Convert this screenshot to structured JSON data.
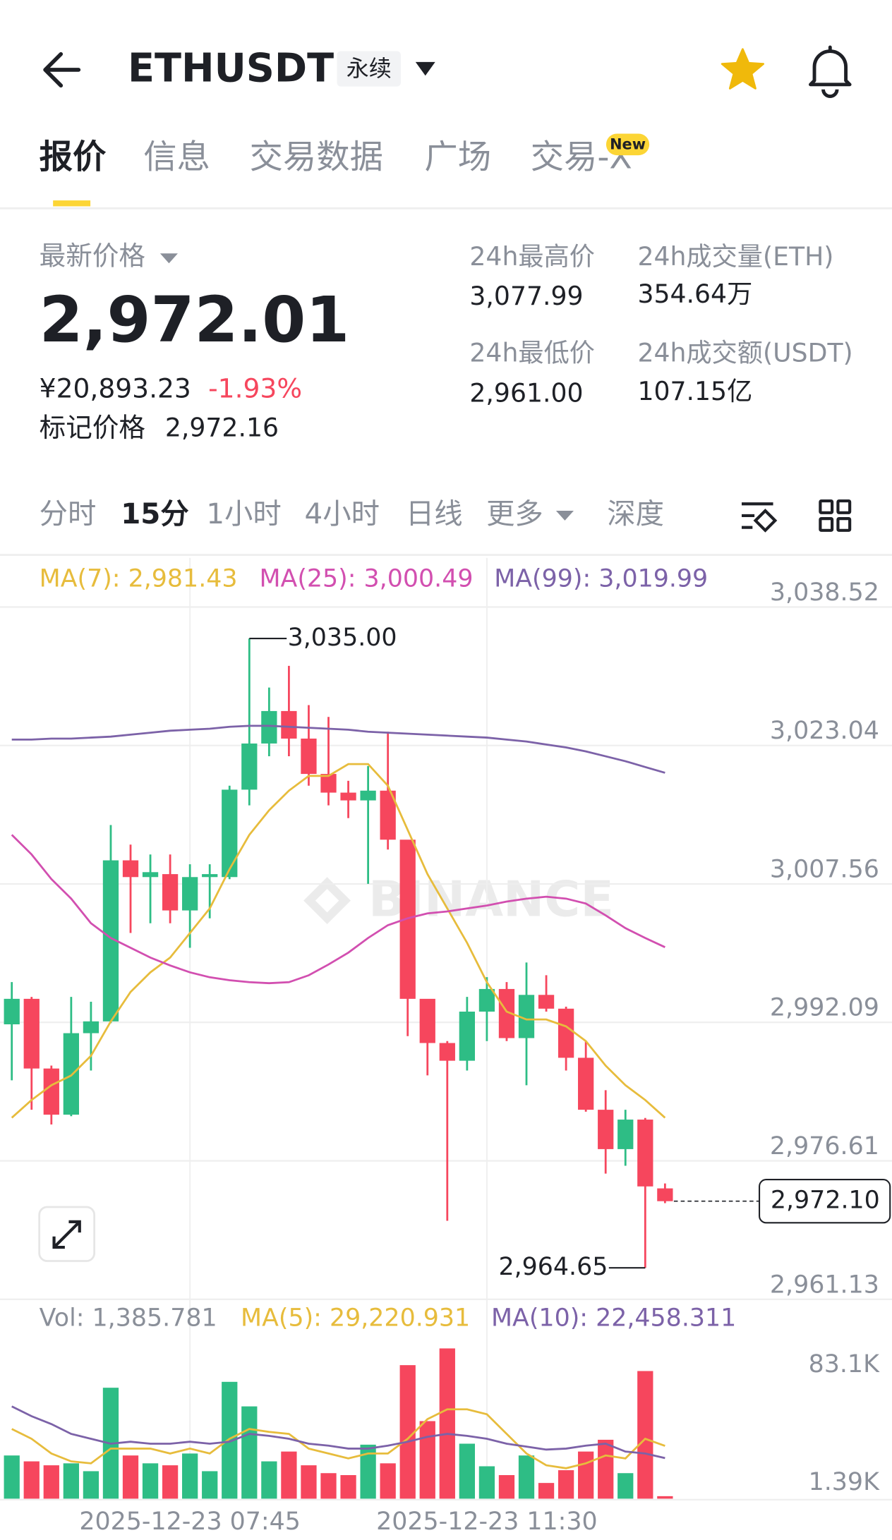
{
  "header": {
    "symbol": "ETHUSDT",
    "contract": "永续"
  },
  "tabs": [
    "报价",
    "信息",
    "交易数据",
    "广场",
    "交易-X"
  ],
  "tab_badge": "New",
  "stats": {
    "last_price_label": "最新价格",
    "last_price": "2,972.01",
    "cny": "¥20,893.23",
    "change": "-1.93%",
    "mark_label": "标记价格",
    "mark_price": "2,972.16",
    "high_label": "24h最高价",
    "high": "3,077.99",
    "low_label": "24h最低价",
    "low": "2,961.00",
    "vol_label": "24h成交量(ETH)",
    "vol": "354.64万",
    "turnover_label": "24h成交额(USDT)",
    "turnover": "107.15亿"
  },
  "intervals": [
    "分时",
    "15分",
    "1小时",
    "4小时",
    "日线",
    "更多",
    "深度"
  ],
  "watermark": "BINANCE",
  "chart_data": [
    {
      "type": "candlestick",
      "categories": [
        null,
        null,
        null,
        null,
        null,
        null,
        null,
        null,
        null,
        "2025-12-23 07:45",
        null,
        null,
        null,
        null,
        null,
        null,
        null,
        null,
        null,
        null,
        null,
        null,
        null,
        null,
        "2025-12-23 11:30",
        null,
        null,
        null,
        null,
        null,
        null,
        null,
        null,
        null
      ],
      "open": [
        2991.87,
        2994.72,
        2986.93,
        2981.77,
        2990.88,
        2992.2,
        3010.2,
        3008.33,
        3008.66,
        3004.6,
        3008.33,
        3008.33,
        3018.1,
        3023.26,
        3026.89,
        3023.81,
        3019.86,
        3017.77,
        3016.9,
        3017.99,
        3012.51,
        2994.72,
        2989.78,
        2987.8,
        2993.29,
        2995.82,
        2990.33,
        2995.16,
        2993.62,
        2988.13,
        2982.32,
        2977.92,
        2981.22,
        2973.53
      ],
      "high": [
        2996.59,
        2994.94,
        2987.26,
        2994.94,
        2994.39,
        3014.15,
        3011.96,
        3010.86,
        3010.86,
        3009.76,
        3009.76,
        3018.54,
        3035.0,
        3029.52,
        3031.94,
        3027.55,
        3026.23,
        3019.09,
        3020.74,
        3024.58,
        3012.3,
        2994.5,
        2990.0,
        2994.94,
        2997.14,
        2996.59,
        2998.78,
        2997.36,
        2993.84,
        2990.0,
        2984.51,
        2982.32,
        2981.4,
        2974.08
      ],
      "low": [
        2985.61,
        2982.32,
        2980.67,
        2981.6,
        2986.71,
        2992.0,
        3002.08,
        3003.17,
        3003.17,
        3000.43,
        3003.72,
        3008.1,
        3016.35,
        3021.84,
        3021.84,
        3018.54,
        3016.35,
        3014.92,
        3007.57,
        3011.41,
        2990.55,
        2986.16,
        2969.91,
        2986.71,
        2990.0,
        2990.0,
        2985.06,
        2993.29,
        2986.71,
        2982.1,
        2975.18,
        2976.06,
        2964.65,
        2971.88
      ],
      "close": [
        2994.72,
        2986.93,
        2981.77,
        2990.88,
        2992.2,
        3010.2,
        3008.33,
        3008.88,
        3004.6,
        3008.33,
        3008.66,
        3018.1,
        3023.26,
        3026.89,
        3023.81,
        3019.86,
        3017.77,
        3016.9,
        3017.99,
        3012.51,
        2994.72,
        2989.78,
        2987.8,
        2993.29,
        2995.82,
        2990.33,
        2995.16,
        2993.62,
        2988.13,
        2982.32,
        2977.92,
        2981.22,
        2973.75,
        2972.1
      ],
      "up_color": "#2ebd85",
      "down_color": "#f6465d",
      "series": [
        {
          "name": "MA(7)",
          "legend": "MA(7): 2,981.43",
          "color": "#e7bc3c",
          "values": [
            2981.43,
            2983.41,
            2985.06,
            2986.15,
            2988.35,
            2992.19,
            2995.49,
            2997.68,
            2999.33,
            3002.07,
            3004.82,
            3009.21,
            3013.05,
            3015.8,
            3017.99,
            3019.64,
            3019.64,
            3020.96,
            3020.96,
            3018.54,
            3013.6,
            3008.66,
            3004.82,
            3000.98,
            2996.58,
            2993.29,
            2992.41,
            2992.41,
            2991.64,
            2990.0,
            2987.25,
            2985.06,
            2983.41,
            2981.43
          ]
        },
        {
          "name": "MA(25)",
          "legend": "MA(25): 3,000.49",
          "color": "#d24fb0",
          "values": [
            3013.05,
            3010.86,
            3008.11,
            3005.92,
            3003.17,
            3001.52,
            3000.43,
            2999.33,
            2998.45,
            2997.68,
            2997.13,
            2996.8,
            2996.58,
            2996.47,
            2996.58,
            2997.35,
            2998.56,
            2999.88,
            3001.52,
            3002.95,
            3003.72,
            3004.27,
            3004.49,
            3004.82,
            3005.15,
            3005.59,
            3005.92,
            3006.13,
            3005.92,
            3005.37,
            3004.05,
            3002.62,
            3001.52,
            3000.49
          ]
        },
        {
          "name": "MA(99)",
          "legend": "MA(99): 3,019.99",
          "color": "#7c62a8",
          "values": [
            3023.7,
            3023.7,
            3023.81,
            3023.81,
            3023.92,
            3024.03,
            3024.25,
            3024.47,
            3024.69,
            3024.8,
            3024.91,
            3025.13,
            3025.24,
            3025.24,
            3025.13,
            3025.02,
            3024.91,
            3024.8,
            3024.58,
            3024.47,
            3024.36,
            3024.25,
            3024.14,
            3024.03,
            3023.92,
            3023.7,
            3023.48,
            3023.15,
            3022.82,
            3022.38,
            3021.83,
            3021.28,
            3020.63,
            3019.99
          ]
        }
      ],
      "ylim": [
        2961.13,
        3044.01
      ],
      "yticks": [
        {
          "value": 3038.52,
          "label": "3,038.52"
        },
        {
          "value": 3023.04,
          "label": "3,023.04"
        },
        {
          "value": 3007.56,
          "label": "3,007.56"
        },
        {
          "value": 2992.09,
          "label": "2,992.09"
        },
        {
          "value": 2976.61,
          "label": "2,976.61"
        },
        {
          "value": 2961.13,
          "label": "2,961.13"
        }
      ],
      "grid": true,
      "annotations": [
        {
          "value": 3035.0,
          "label": "3,035.00"
        },
        {
          "value": 2964.65,
          "label": "2,964.65"
        }
      ],
      "last_price": {
        "value": 2972.1,
        "label": "2,972.10"
      }
    },
    {
      "type": "bar",
      "legend": "Vol: 1,385.781",
      "values": [
        23892,
        20634,
        18462,
        19548,
        15204,
        61359,
        23892,
        19548,
        18462,
        24978,
        15204,
        64617,
        51042,
        20634,
        26064,
        18462,
        14118,
        13032,
        29865,
        19548,
        73848,
        42897,
        83100,
        30408,
        17919,
        13032,
        23892,
        8688,
        15747,
        26064,
        32580,
        14118,
        70590,
        1385.781
      ],
      "series": [
        {
          "name": "MA(5)",
          "legend": "MA(5): 29,220.931",
          "color": "#e7bc3c",
          "values": [
            38553,
            33123,
            24978,
            20634,
            19548,
            27693,
            27693,
            27693,
            24978,
            27693,
            24978,
            33123,
            38553,
            36924,
            35838,
            27693,
            24978,
            22263,
            24978,
            24978,
            33123,
            43983,
            49413,
            49413,
            46698,
            35838,
            24978,
            18462,
            16833,
            19548,
            23892,
            22263,
            33123,
            29220.931
          ]
        },
        {
          "name": "MA(10)",
          "legend": "MA(10): 22,458.311",
          "color": "#7c62a8",
          "values": [
            51042,
            45612,
            41268,
            35838,
            33123,
            30408,
            31494,
            30408,
            30408,
            31494,
            30408,
            31494,
            35838,
            34752,
            33123,
            30408,
            29322,
            27693,
            27693,
            29322,
            31494,
            34209,
            35838,
            34752,
            33123,
            30408,
            28779,
            27150,
            27693,
            29322,
            30408,
            26064,
            24978,
            22458.311
          ]
        }
      ],
      "ylim": [
        0,
        83100
      ],
      "yticks": [
        {
          "value": 83100,
          "label": "83.1K"
        },
        {
          "value": 1390,
          "label": "1.39K"
        }
      ]
    }
  ]
}
